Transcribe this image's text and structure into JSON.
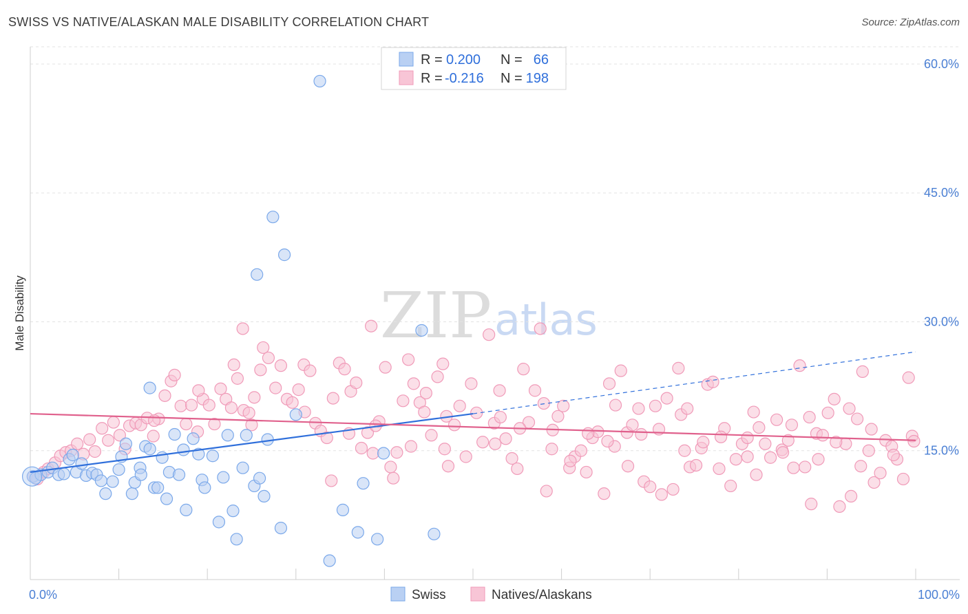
{
  "title": "SWISS VS NATIVE/ALASKAN MALE DISABILITY CORRELATION CHART",
  "source": "Source: ZipAtlas.com",
  "watermark": {
    "zip": "ZIP",
    "atlas": "atlas"
  },
  "colors": {
    "swiss": "#7aa8ea",
    "swiss_fill": "#b9d0f3",
    "swiss_line": "#2f6fdb",
    "natives": "#f09ab8",
    "natives_fill": "#f8c5d6",
    "natives_line": "#e0608c",
    "axis_text": "#4a7fd4",
    "grid": "#e3e3e3"
  },
  "legend": {
    "rows": [
      {
        "r_label": "R =",
        "r_value": "0.200",
        "n_label": "N =",
        "n_value": "66"
      },
      {
        "r_label": "R =",
        "r_value": "-0.216",
        "n_label": "N =",
        "n_value": "198"
      }
    ]
  },
  "bottom_legend": {
    "swiss": "Swiss",
    "natives": "Natives/Alaskans"
  },
  "chart_data": {
    "type": "scatter",
    "xlabel": "",
    "ylabel": "Male Disability",
    "xlim": [
      0,
      100
    ],
    "ylim": [
      0,
      62
    ],
    "x_tick_labels": [
      "0.0%",
      "100.0%"
    ],
    "y_ticks": [
      15,
      30,
      45,
      60
    ],
    "y_tick_labels": [
      "15.0%",
      "30.0%",
      "45.0%",
      "60.0%"
    ],
    "grid": "horizontal dashed",
    "legend_position": "top-center",
    "series": [
      {
        "name": "Swiss",
        "trend": {
          "x0": 0,
          "y0": 12.5,
          "x1": 50,
          "y1": 19.3,
          "dash_to_x": 100,
          "dash_to_y": 26.5
        },
        "points": [
          [
            0.3,
            12.0
          ],
          [
            0.6,
            11.8
          ],
          [
            1.2,
            12.2
          ],
          [
            2.0,
            12.5
          ],
          [
            2.5,
            13.0
          ],
          [
            3.2,
            12.2
          ],
          [
            3.8,
            12.3
          ],
          [
            4.4,
            14.0
          ],
          [
            4.8,
            14.5
          ],
          [
            5.2,
            12.5
          ],
          [
            5.8,
            13.5
          ],
          [
            6.3,
            12.1
          ],
          [
            7.0,
            12.4
          ],
          [
            7.5,
            12.2
          ],
          [
            8.0,
            11.5
          ],
          [
            8.5,
            10.0
          ],
          [
            9.3,
            11.4
          ],
          [
            10.0,
            12.8
          ],
          [
            10.3,
            14.3
          ],
          [
            10.8,
            15.8
          ],
          [
            11.5,
            10.0
          ],
          [
            11.8,
            11.3
          ],
          [
            12.4,
            13.0
          ],
          [
            12.5,
            12.2
          ],
          [
            13.0,
            15.5
          ],
          [
            13.5,
            15.2
          ],
          [
            14.0,
            10.7
          ],
          [
            14.4,
            10.7
          ],
          [
            14.9,
            14.2
          ],
          [
            15.4,
            9.4
          ],
          [
            15.7,
            12.5
          ],
          [
            16.3,
            16.9
          ],
          [
            16.8,
            12.2
          ],
          [
            17.3,
            15.1
          ],
          [
            17.6,
            8.1
          ],
          [
            18.4,
            16.4
          ],
          [
            19.0,
            14.6
          ],
          [
            19.4,
            11.6
          ],
          [
            19.7,
            10.7
          ],
          [
            20.6,
            14.4
          ],
          [
            21.3,
            6.7
          ],
          [
            21.8,
            11.9
          ],
          [
            22.3,
            16.8
          ],
          [
            22.9,
            8.0
          ],
          [
            23.3,
            4.7
          ],
          [
            24.0,
            13.0
          ],
          [
            24.4,
            16.8
          ],
          [
            25.3,
            10.9
          ],
          [
            25.6,
            35.5
          ],
          [
            25.9,
            11.8
          ],
          [
            26.4,
            9.7
          ],
          [
            26.8,
            16.3
          ],
          [
            27.4,
            42.2
          ],
          [
            28.3,
            6.0
          ],
          [
            28.7,
            37.8
          ],
          [
            30.0,
            19.2
          ],
          [
            32.7,
            58.0
          ],
          [
            33.8,
            2.2
          ],
          [
            35.3,
            8.1
          ],
          [
            37.0,
            5.5
          ],
          [
            37.6,
            11.2
          ],
          [
            39.2,
            4.7
          ],
          [
            39.9,
            14.7
          ],
          [
            44.2,
            29.0
          ],
          [
            45.6,
            5.3
          ],
          [
            13.5,
            22.3
          ]
        ]
      },
      {
        "name": "Natives/Alaskans",
        "trend": {
          "x0": 0,
          "y0": 19.3,
          "x1": 100,
          "y1": 16.2
        },
        "points": [
          [
            0.3,
            12.0
          ],
          [
            0.8,
            11.7
          ],
          [
            1.5,
            12.5
          ],
          [
            2.0,
            12.9
          ],
          [
            2.8,
            13.6
          ],
          [
            3.4,
            14.4
          ],
          [
            4.0,
            14.8
          ],
          [
            4.6,
            15.0
          ],
          [
            5.3,
            15.8
          ],
          [
            6.0,
            14.6
          ],
          [
            6.7,
            16.3
          ],
          [
            7.3,
            14.9
          ],
          [
            8.1,
            17.6
          ],
          [
            8.8,
            16.2
          ],
          [
            9.4,
            18.3
          ],
          [
            10.1,
            16.8
          ],
          [
            10.7,
            15.2
          ],
          [
            11.2,
            17.9
          ],
          [
            11.9,
            18.2
          ],
          [
            12.5,
            18.0
          ],
          [
            13.2,
            18.8
          ],
          [
            13.9,
            16.7
          ],
          [
            14.5,
            18.7
          ],
          [
            15.2,
            21.4
          ],
          [
            15.9,
            23.1
          ],
          [
            16.3,
            23.8
          ],
          [
            17.0,
            20.2
          ],
          [
            17.6,
            18.1
          ],
          [
            18.2,
            20.3
          ],
          [
            18.9,
            17.2
          ],
          [
            19.5,
            21.0
          ],
          [
            20.2,
            20.3
          ],
          [
            20.8,
            18.1
          ],
          [
            21.5,
            22.2
          ],
          [
            22.1,
            21.0
          ],
          [
            22.7,
            20.0
          ],
          [
            23.4,
            23.4
          ],
          [
            24.1,
            19.7
          ],
          [
            24.7,
            19.4
          ],
          [
            25.3,
            21.2
          ],
          [
            26.0,
            24.4
          ],
          [
            26.3,
            27.0
          ],
          [
            26.9,
            25.8
          ],
          [
            27.7,
            22.3
          ],
          [
            28.3,
            24.9
          ],
          [
            29.0,
            21.0
          ],
          [
            29.6,
            20.6
          ],
          [
            30.3,
            22.1
          ],
          [
            30.9,
            25.0
          ],
          [
            31.6,
            24.3
          ],
          [
            32.2,
            18.2
          ],
          [
            32.8,
            17.3
          ],
          [
            33.5,
            16.5
          ],
          [
            34.2,
            21.1
          ],
          [
            34.9,
            25.2
          ],
          [
            35.5,
            24.5
          ],
          [
            36.2,
            21.9
          ],
          [
            36.8,
            22.9
          ],
          [
            37.4,
            15.3
          ],
          [
            38.1,
            17.1
          ],
          [
            38.7,
            14.7
          ],
          [
            39.4,
            18.4
          ],
          [
            40.1,
            24.7
          ],
          [
            40.7,
            13.1
          ],
          [
            41.4,
            14.8
          ],
          [
            42.1,
            20.8
          ],
          [
            42.7,
            25.6
          ],
          [
            43.3,
            22.8
          ],
          [
            44.0,
            20.6
          ],
          [
            44.7,
            21.7
          ],
          [
            45.3,
            16.8
          ],
          [
            46.0,
            23.6
          ],
          [
            46.6,
            25.1
          ],
          [
            47.2,
            13.2
          ],
          [
            47.9,
            18.0
          ],
          [
            48.5,
            20.2
          ],
          [
            49.2,
            14.3
          ],
          [
            49.8,
            22.8
          ],
          [
            50.4,
            19.4
          ],
          [
            51.1,
            16.0
          ],
          [
            51.8,
            28.5
          ],
          [
            52.4,
            18.2
          ],
          [
            53.1,
            18.9
          ],
          [
            53.7,
            16.4
          ],
          [
            54.4,
            14.1
          ],
          [
            55.0,
            12.9
          ],
          [
            55.7,
            24.5
          ],
          [
            56.3,
            18.3
          ],
          [
            57.0,
            22.0
          ],
          [
            57.6,
            29.2
          ],
          [
            58.3,
            10.3
          ],
          [
            58.9,
            15.2
          ],
          [
            59.6,
            19.0
          ],
          [
            60.2,
            20.2
          ],
          [
            60.9,
            13.0
          ],
          [
            61.5,
            14.3
          ],
          [
            62.2,
            15.0
          ],
          [
            62.8,
            12.5
          ],
          [
            63.5,
            16.5
          ],
          [
            64.1,
            17.2
          ],
          [
            64.8,
            10.0
          ],
          [
            65.4,
            22.8
          ],
          [
            66.1,
            20.3
          ],
          [
            66.7,
            24.3
          ],
          [
            67.4,
            17.1
          ],
          [
            68.0,
            18.0
          ],
          [
            68.7,
            19.9
          ],
          [
            69.3,
            11.4
          ],
          [
            70.0,
            10.8
          ],
          [
            70.6,
            20.2
          ],
          [
            71.3,
            9.9
          ],
          [
            71.9,
            21.1
          ],
          [
            72.6,
            10.5
          ],
          [
            73.2,
            24.6
          ],
          [
            73.9,
            15.0
          ],
          [
            74.5,
            13.1
          ],
          [
            75.2,
            13.3
          ],
          [
            75.8,
            15.3
          ],
          [
            76.5,
            22.7
          ],
          [
            77.1,
            23.0
          ],
          [
            77.8,
            12.9
          ],
          [
            78.4,
            17.6
          ],
          [
            79.1,
            10.9
          ],
          [
            79.7,
            14.0
          ],
          [
            80.4,
            15.8
          ],
          [
            81.0,
            14.3
          ],
          [
            81.7,
            19.5
          ],
          [
            82.3,
            17.7
          ],
          [
            83.0,
            15.8
          ],
          [
            83.6,
            14.2
          ],
          [
            84.3,
            18.6
          ],
          [
            84.9,
            15.1
          ],
          [
            85.6,
            16.2
          ],
          [
            86.2,
            13.0
          ],
          [
            86.9,
            24.9
          ],
          [
            87.5,
            13.1
          ],
          [
            88.2,
            8.8
          ],
          [
            88.8,
            17.0
          ],
          [
            89.5,
            16.8
          ],
          [
            90.1,
            19.4
          ],
          [
            90.8,
            21.0
          ],
          [
            91.4,
            8.5
          ],
          [
            92.1,
            15.8
          ],
          [
            92.7,
            9.7
          ],
          [
            93.4,
            18.7
          ],
          [
            94.0,
            24.2
          ],
          [
            94.7,
            15.0
          ],
          [
            95.3,
            11.3
          ],
          [
            96.0,
            12.4
          ],
          [
            96.6,
            16.2
          ],
          [
            97.3,
            15.5
          ],
          [
            97.9,
            14.0
          ],
          [
            98.6,
            11.7
          ],
          [
            99.2,
            23.5
          ],
          [
            99.6,
            16.7
          ],
          [
            99.8,
            16.1
          ],
          [
            14.0,
            18.5
          ],
          [
            19.0,
            22.0
          ],
          [
            25.0,
            18.0
          ],
          [
            31.0,
            19.5
          ],
          [
            36.0,
            17.0
          ],
          [
            43.0,
            15.5
          ],
          [
            47.0,
            19.0
          ],
          [
            53.0,
            22.0
          ],
          [
            58.0,
            20.5
          ],
          [
            63.0,
            17.0
          ],
          [
            66.0,
            15.5
          ],
          [
            71.0,
            17.5
          ],
          [
            76.0,
            16.0
          ],
          [
            81.0,
            16.5
          ],
          [
            86.0,
            18.0
          ],
          [
            91.0,
            16.0
          ],
          [
            95.0,
            17.5
          ],
          [
            97.5,
            14.5
          ],
          [
            24.0,
            29.2
          ],
          [
            34.0,
            11.5
          ],
          [
            38.5,
            29.5
          ],
          [
            23.0,
            25.0
          ],
          [
            44.5,
            19.5
          ],
          [
            52.5,
            15.8
          ],
          [
            67.5,
            13.2
          ],
          [
            59.0,
            17.4
          ],
          [
            73.5,
            19.2
          ],
          [
            82.0,
            12.2
          ],
          [
            88.0,
            18.9
          ],
          [
            93.8,
            13.2
          ],
          [
            41.0,
            11.8
          ],
          [
            61.0,
            13.8
          ],
          [
            69.0,
            16.9
          ],
          [
            78.0,
            16.6
          ],
          [
            85.0,
            14.8
          ],
          [
            55.3,
            17.6
          ],
          [
            46.8,
            15.2
          ],
          [
            65.2,
            16.1
          ],
          [
            74.2,
            19.9
          ],
          [
            89.0,
            14.0
          ],
          [
            92.5,
            19.9
          ],
          [
            39.0,
            17.9
          ]
        ]
      }
    ]
  }
}
